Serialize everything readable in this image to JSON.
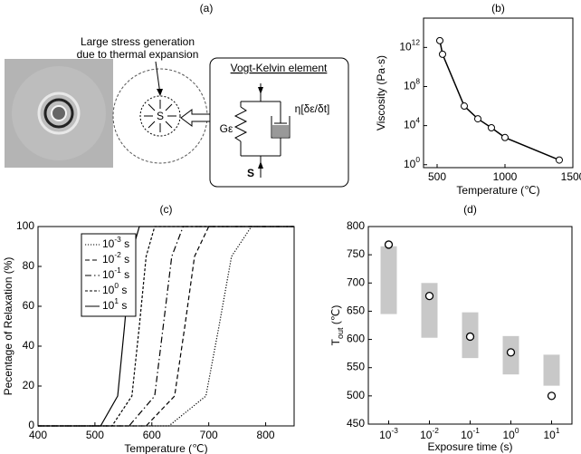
{
  "diagram": {
    "label": "(a)",
    "annotation": [
      "Large stress generation",
      "due to thermal expansion"
    ],
    "element_title": "Vogt-Kelvin element",
    "spring_label": "Gε",
    "dashpot_label": "η[δε/δt]",
    "center_label": "S",
    "force_label": "S"
  },
  "chart_data": [
    {
      "type": "scatter",
      "title": "(b)",
      "xlabel": "Temperature (℃)",
      "ylabel": "Viscosity (Pa·s)",
      "log_y": true,
      "connect": true,
      "color": "#000000",
      "x": [
        520,
        540,
        700,
        800,
        900,
        1000,
        1400
      ],
      "values": [
        5000000000000,
        200000000000,
        1000000,
        50000,
        6000,
        600,
        3
      ],
      "xlim": [
        400,
        1500
      ],
      "xticks": [
        500,
        1000,
        1500
      ],
      "ylim": [
        0.5,
        1000000000000000
      ],
      "yticks": [
        {
          "value": 1,
          "label": "10^0"
        },
        {
          "value": 10000,
          "label": "10^4"
        },
        {
          "value": 100000000,
          "label": "10^8"
        },
        {
          "value": 1000000000000,
          "label": "10^12"
        }
      ]
    },
    {
      "type": "line",
      "title": "(c)",
      "xlabel": "Temperature (℃)",
      "ylabel": "Pecentage of Relaxation (%)",
      "xlim": [
        400,
        850
      ],
      "xticks": [
        400,
        500,
        600,
        700,
        800
      ],
      "ylim": [
        0,
        100
      ],
      "yticks": [
        0,
        20,
        40,
        60,
        80,
        100
      ],
      "legend": "upper-left",
      "series": [
        {
          "name": "10^-3 s",
          "color": "#000000",
          "style": "dotted",
          "x": [
            400,
            630,
            695,
            718,
            740,
            775,
            850
          ],
          "values": [
            0,
            0,
            15,
            50,
            85,
            100,
            100
          ]
        },
        {
          "name": "10^-2 s",
          "color": "#000000",
          "style": "dashed",
          "x": [
            400,
            590,
            640,
            658,
            675,
            700,
            850
          ],
          "values": [
            0,
            0,
            15,
            50,
            85,
            100,
            100
          ]
        },
        {
          "name": "10^-1 s",
          "color": "#000000",
          "style": "dash-dot",
          "x": [
            400,
            560,
            605,
            620,
            635,
            655,
            850
          ],
          "values": [
            0,
            0,
            15,
            50,
            85,
            100,
            100
          ]
        },
        {
          "name": "10^0 s",
          "color": "#000000",
          "style": "short-dash",
          "x": [
            400,
            530,
            565,
            578,
            590,
            605,
            850
          ],
          "values": [
            0,
            0,
            15,
            50,
            85,
            100,
            100
          ]
        },
        {
          "name": "10^1 s",
          "color": "#000000",
          "style": "solid",
          "x": [
            400,
            510,
            540,
            552,
            563,
            578,
            850
          ],
          "values": [
            0,
            0,
            15,
            50,
            85,
            100,
            100
          ]
        }
      ]
    },
    {
      "type": "range",
      "title": "(d)",
      "xlabel": "Exposure time (s)",
      "ylabel": "T_out (℃)",
      "categories": [
        "10^-3",
        "10^-2",
        "10^-1",
        "10^0",
        "10^1"
      ],
      "ranges": [
        [
          645,
          765
        ],
        [
          603,
          700
        ],
        [
          567,
          648
        ],
        [
          538,
          606
        ],
        [
          518,
          573
        ]
      ],
      "range_color": "#c8c8c8",
      "values": [
        768,
        677,
        605,
        577,
        500
      ],
      "color": "#000000",
      "ylim": [
        450,
        800
      ],
      "yticks": [
        450,
        500,
        550,
        600,
        650,
        700,
        750,
        800
      ]
    }
  ]
}
